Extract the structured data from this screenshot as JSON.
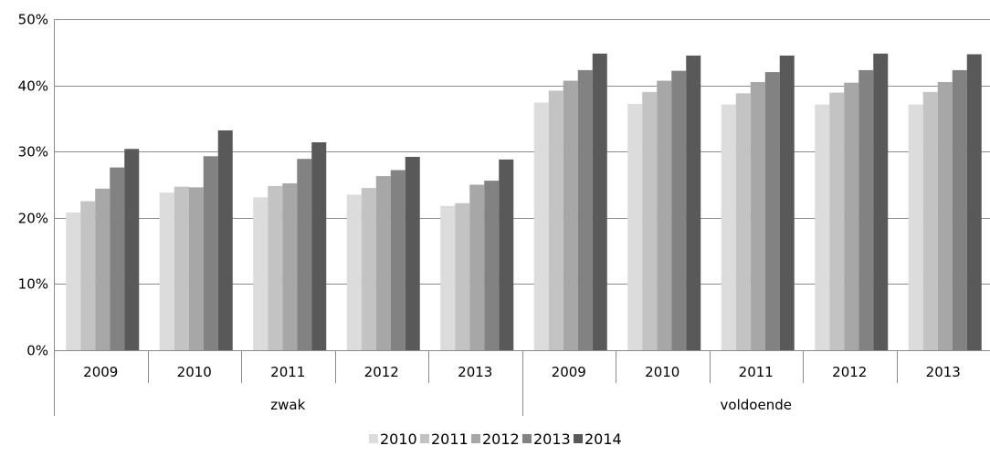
{
  "chart_data": {
    "type": "bar",
    "title": "",
    "xlabel": "",
    "ylabel": "",
    "ylim": [
      0,
      50
    ],
    "y_ticks": [
      "0%",
      "10%",
      "20%",
      "30%",
      "40%",
      "50%"
    ],
    "y_tick_values": [
      0,
      10,
      20,
      30,
      40,
      50
    ],
    "grid": true,
    "legend_position": "bottom",
    "groups": [
      {
        "label": "zwak",
        "categories": [
          "2009",
          "2010",
          "2011",
          "2012",
          "2013"
        ]
      },
      {
        "label": "voldoende",
        "categories": [
          "2009",
          "2010",
          "2011",
          "2012",
          "2013"
        ]
      }
    ],
    "categories": [
      "2009",
      "2010",
      "2011",
      "2012",
      "2013",
      "2009",
      "2010",
      "2011",
      "2012",
      "2013"
    ],
    "series": [
      {
        "name": "2010",
        "color": "#dcdcdc",
        "values": [
          20.8,
          23.8,
          23.1,
          23.5,
          21.8,
          37.4,
          37.2,
          37.1,
          37.1,
          37.1
        ]
      },
      {
        "name": "2011",
        "color": "#c3c3c3",
        "values": [
          22.5,
          24.7,
          24.8,
          24.5,
          22.2,
          39.2,
          39.0,
          38.8,
          38.9,
          39.0
        ]
      },
      {
        "name": "2012",
        "color": "#a7a7a7",
        "values": [
          24.4,
          24.6,
          25.2,
          26.3,
          25.0,
          40.7,
          40.7,
          40.5,
          40.4,
          40.5
        ]
      },
      {
        "name": "2013",
        "color": "#828282",
        "values": [
          27.6,
          29.3,
          28.9,
          27.2,
          25.6,
          42.3,
          42.2,
          42.0,
          42.3,
          42.3
        ]
      },
      {
        "name": "2014",
        "color": "#595959",
        "values": [
          30.4,
          33.2,
          31.4,
          29.2,
          28.8,
          44.8,
          44.5,
          44.5,
          44.8,
          44.7
        ]
      }
    ]
  }
}
